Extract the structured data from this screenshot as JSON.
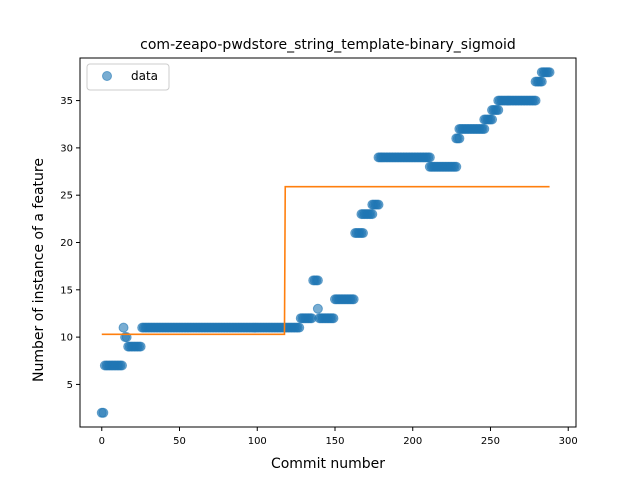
{
  "chart_data": {
    "type": "scatter",
    "title": "com-zeapo-pwdstore_string_template-binary_sigmoid",
    "xlabel": "Commit number",
    "ylabel": "Number of instance of a feature",
    "xlim": [
      -14,
      305
    ],
    "ylim": [
      0.5,
      39.5
    ],
    "xticks": [
      0,
      50,
      100,
      150,
      200,
      250,
      300
    ],
    "yticks": [
      5,
      10,
      15,
      20,
      25,
      30,
      35
    ],
    "grid": false,
    "legend_position": "upper-left",
    "colors": {
      "data": "#1f77b4",
      "fit": "#ff7f0e"
    },
    "series": [
      {
        "name": "data",
        "kind": "scatter",
        "runs": [
          [
            0,
            1,
            2
          ],
          [
            2,
            13,
            7
          ],
          [
            14,
            14,
            11
          ],
          [
            15,
            16,
            10
          ],
          [
            17,
            25,
            9
          ],
          [
            26,
            127,
            11
          ],
          [
            128,
            135,
            12
          ],
          [
            136,
            139,
            16
          ],
          [
            139,
            139,
            13
          ],
          [
            140,
            149,
            12
          ],
          [
            150,
            162,
            14
          ],
          [
            163,
            168,
            21
          ],
          [
            167,
            174,
            23
          ],
          [
            174,
            178,
            24
          ],
          [
            178,
            211,
            29
          ],
          [
            211,
            228,
            28
          ],
          [
            228,
            230,
            31
          ],
          [
            230,
            246,
            32
          ],
          [
            246,
            251,
            33
          ],
          [
            251,
            255,
            34
          ],
          [
            255,
            279,
            35
          ],
          [
            279,
            283,
            37
          ],
          [
            283,
            288,
            38
          ]
        ]
      },
      {
        "kind": "line",
        "x": [
          0,
          117.5,
          118,
          288
        ],
        "y": [
          10.3,
          10.3,
          25.9,
          25.9
        ]
      }
    ]
  }
}
